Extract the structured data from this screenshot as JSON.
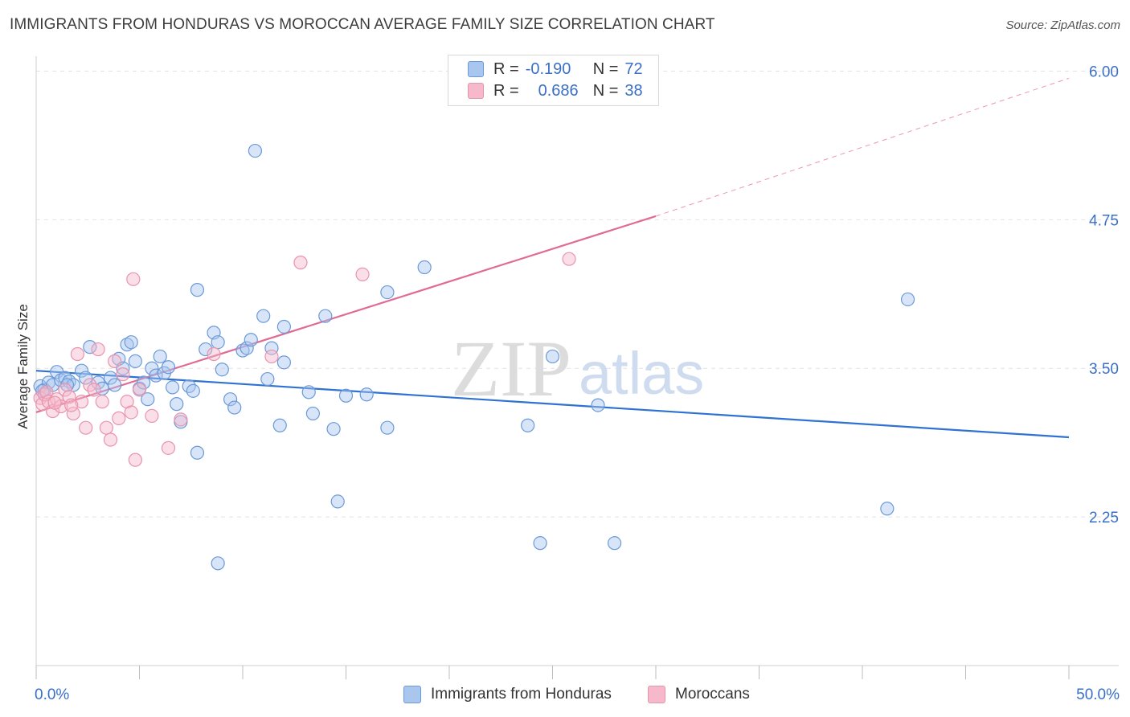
{
  "title": "IMMIGRANTS FROM HONDURAS VS MOROCCAN AVERAGE FAMILY SIZE CORRELATION CHART",
  "source": "Source: ZipAtlas.com",
  "legend": {
    "r_label": "R =",
    "n_label": "N =",
    "rows": [
      {
        "r": "-0.190",
        "n": "72"
      },
      {
        "r": "0.686",
        "n": "38"
      }
    ]
  },
  "watermark": {
    "zip": "ZIP",
    "atlas": "atlas"
  },
  "colors": {
    "blue_fill": "#a9c6ef",
    "blue_stroke": "#6b9ad8",
    "blue_line": "#2f72d2",
    "pink_fill": "#f6b9cc",
    "pink_stroke": "#e894ae",
    "pink_line": "#e06b95",
    "tick_label": "#3a6fc7",
    "grid": "#e2e2e2"
  },
  "chart_data": {
    "type": "scatter",
    "title": "IMMIGRANTS FROM HONDURAS VS MOROCCAN AVERAGE FAMILY SIZE CORRELATION CHART",
    "xlabel": "",
    "ylabel": "Average Family Size",
    "xlim": [
      0,
      50
    ],
    "ylim": [
      1.0,
      6.125
    ],
    "x_tick_labels": [
      "0.0%",
      "50.0%"
    ],
    "y_ticks": [
      2.25,
      3.5,
      4.75,
      6.0
    ],
    "y_tick_labels": [
      "2.25",
      "3.50",
      "4.75",
      "6.00"
    ],
    "grid": true,
    "legend_position": "top-center",
    "series": [
      {
        "name": "Immigrants from Honduras",
        "color": "#6b9ad8",
        "trend": {
          "x": [
            0,
            50
          ],
          "y": [
            3.48,
            2.92
          ],
          "dashed_from": null
        },
        "points": [
          [
            0.2,
            3.35
          ],
          [
            0.4,
            3.32
          ],
          [
            0.6,
            3.38
          ],
          [
            0.8,
            3.36
          ],
          [
            1.0,
            3.47
          ],
          [
            1.2,
            3.4
          ],
          [
            1.4,
            3.42
          ],
          [
            1.6,
            3.39
          ],
          [
            1.8,
            3.36
          ],
          [
            2.2,
            3.48
          ],
          [
            2.4,
            3.42
          ],
          [
            2.6,
            3.68
          ],
          [
            3.0,
            3.38
          ],
          [
            3.2,
            3.33
          ],
          [
            3.6,
            3.42
          ],
          [
            3.8,
            3.36
          ],
          [
            4.0,
            3.58
          ],
          [
            4.2,
            3.5
          ],
          [
            4.4,
            3.7
          ],
          [
            4.6,
            3.72
          ],
          [
            4.8,
            3.56
          ],
          [
            5.0,
            3.33
          ],
          [
            5.2,
            3.38
          ],
          [
            5.4,
            3.24
          ],
          [
            5.6,
            3.5
          ],
          [
            5.8,
            3.44
          ],
          [
            6.0,
            3.6
          ],
          [
            6.2,
            3.46
          ],
          [
            6.4,
            3.51
          ],
          [
            6.6,
            3.34
          ],
          [
            6.8,
            3.2
          ],
          [
            7.0,
            3.05
          ],
          [
            7.4,
            3.35
          ],
          [
            7.6,
            3.31
          ],
          [
            7.8,
            2.79
          ],
          [
            7.8,
            4.16
          ],
          [
            8.2,
            3.66
          ],
          [
            8.6,
            3.8
          ],
          [
            8.8,
            3.72
          ],
          [
            8.8,
            1.86
          ],
          [
            9.0,
            3.49
          ],
          [
            9.4,
            3.24
          ],
          [
            9.6,
            3.17
          ],
          [
            10.0,
            3.65
          ],
          [
            10.2,
            3.67
          ],
          [
            10.4,
            3.74
          ],
          [
            10.6,
            5.33
          ],
          [
            11.0,
            3.94
          ],
          [
            11.2,
            3.41
          ],
          [
            11.4,
            3.67
          ],
          [
            11.8,
            3.02
          ],
          [
            12.0,
            3.85
          ],
          [
            12.0,
            3.55
          ],
          [
            13.2,
            3.3
          ],
          [
            13.4,
            3.12
          ],
          [
            14.0,
            3.94
          ],
          [
            14.4,
            2.99
          ],
          [
            14.6,
            2.38
          ],
          [
            15.0,
            3.27
          ],
          [
            16.0,
            3.28
          ],
          [
            17.0,
            4.14
          ],
          [
            17.0,
            3.0
          ],
          [
            18.8,
            4.35
          ],
          [
            23.8,
            3.02
          ],
          [
            24.4,
            2.03
          ],
          [
            25.0,
            3.6
          ],
          [
            27.2,
            3.19
          ],
          [
            28.0,
            2.03
          ],
          [
            41.2,
            2.32
          ],
          [
            42.2,
            4.08
          ],
          [
            0.3,
            3.31
          ],
          [
            1.5,
            3.36
          ]
        ]
      },
      {
        "name": "Moroccans",
        "color": "#e894ae",
        "trend": {
          "x": [
            0,
            30,
            50
          ],
          "y": [
            3.13,
            4.78,
            5.94
          ],
          "dashed_from": 30
        },
        "points": [
          [
            0.2,
            3.25
          ],
          [
            0.3,
            3.2
          ],
          [
            0.4,
            3.28
          ],
          [
            0.5,
            3.3
          ],
          [
            0.6,
            3.22
          ],
          [
            0.8,
            3.14
          ],
          [
            1.0,
            3.24
          ],
          [
            1.2,
            3.18
          ],
          [
            1.4,
            3.32
          ],
          [
            1.6,
            3.26
          ],
          [
            1.8,
            3.12
          ],
          [
            2.0,
            3.62
          ],
          [
            2.2,
            3.22
          ],
          [
            2.4,
            3.0
          ],
          [
            2.6,
            3.36
          ],
          [
            2.8,
            3.32
          ],
          [
            3.0,
            3.66
          ],
          [
            3.2,
            3.22
          ],
          [
            3.4,
            3.0
          ],
          [
            3.6,
            2.9
          ],
          [
            3.8,
            3.56
          ],
          [
            4.0,
            3.08
          ],
          [
            4.2,
            3.45
          ],
          [
            4.4,
            3.22
          ],
          [
            4.6,
            3.13
          ],
          [
            4.8,
            2.73
          ],
          [
            5.0,
            3.32
          ],
          [
            5.6,
            3.1
          ],
          [
            4.7,
            4.25
          ],
          [
            6.4,
            2.83
          ],
          [
            7.0,
            3.07
          ],
          [
            8.6,
            3.62
          ],
          [
            11.4,
            3.6
          ],
          [
            12.8,
            4.39
          ],
          [
            15.8,
            4.29
          ],
          [
            25.8,
            4.42
          ],
          [
            0.9,
            3.21
          ],
          [
            1.7,
            3.19
          ]
        ]
      }
    ]
  }
}
